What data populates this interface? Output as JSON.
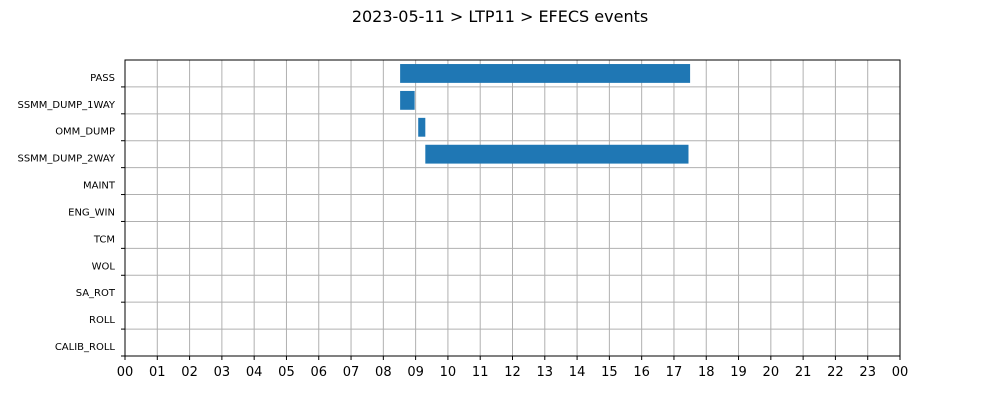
{
  "chart_data": {
    "type": "bar",
    "orientation": "horizontal-gantt",
    "title": "2023-05-11 > LTP11 > EFECS events",
    "xlabel": "",
    "ylabel": "",
    "x_unit": "hour",
    "xlim": [
      0,
      24
    ],
    "x_tick_labels": [
      "00",
      "01",
      "02",
      "03",
      "04",
      "05",
      "06",
      "07",
      "08",
      "09",
      "10",
      "11",
      "12",
      "13",
      "14",
      "15",
      "16",
      "17",
      "18",
      "19",
      "20",
      "21",
      "22",
      "23",
      "00"
    ],
    "categories": [
      "PASS",
      "SSMM_DUMP_1WAY",
      "OMM_DUMP",
      "SSMM_DUMP_2WAY",
      "MAINT",
      "ENG_WIN",
      "TCM",
      "WOL",
      "SA_ROT",
      "ROLL",
      "CALIB_ROLL"
    ],
    "events": [
      {
        "category": "PASS",
        "start": 8.52,
        "end": 17.5
      },
      {
        "category": "SSMM_DUMP_1WAY",
        "start": 8.52,
        "end": 8.97
      },
      {
        "category": "OMM_DUMP",
        "start": 9.08,
        "end": 9.3
      },
      {
        "category": "SSMM_DUMP_2WAY",
        "start": 9.3,
        "end": 17.45
      }
    ],
    "grid": true,
    "legend": "none",
    "bar_color": "#1f77b4"
  }
}
